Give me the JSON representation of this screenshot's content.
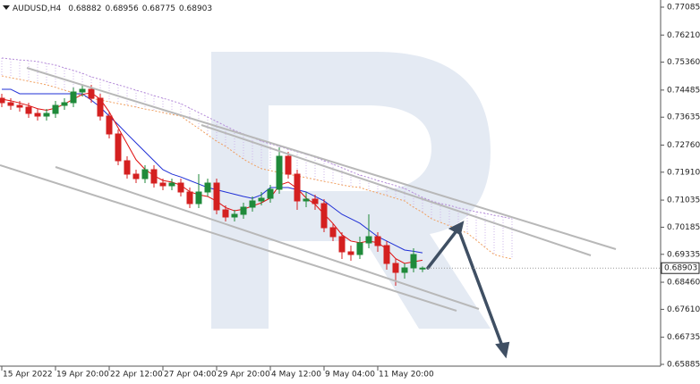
{
  "chart_data": {
    "type": "candlestick",
    "symbol": "AUDUSD,H4",
    "header_ohlc": [
      0.68882,
      0.68956,
      0.68775,
      0.68903
    ],
    "last_price": 0.68903,
    "up_color": "#1f8a3a",
    "down_color": "#d42020",
    "ylim": [
      0.65829,
      0.77309
    ],
    "yticks": [
      0.77085,
      {
        "value": 0.7621,
        "label": "0.76210"
      },
      {
        "value": 0.7536,
        "label": "0.75360"
      },
      0.74485,
      0.73635,
      {
        "value": 0.7276,
        "label": "0.72760"
      },
      {
        "value": 0.7191,
        "label": "0.71910"
      },
      0.71035,
      0.70185,
      0.69335,
      {
        "value": 0.6846,
        "label": "0.68460"
      },
      {
        "value": 0.6761,
        "label": "0.67610"
      },
      0.66735,
      0.65885
    ],
    "categories": [
      "15 Apr 2022",
      null,
      null,
      null,
      null,
      null,
      "19 Apr 20:00",
      null,
      null,
      null,
      null,
      null,
      "22 Apr 12:00",
      null,
      null,
      null,
      null,
      null,
      "27 Apr 04:00",
      null,
      null,
      null,
      null,
      null,
      "29 Apr 20:00",
      null,
      null,
      null,
      null,
      null,
      "4 May 12:00",
      null,
      null,
      null,
      null,
      null,
      "9 May 04:00",
      null,
      null,
      null,
      null,
      null,
      "11 May 20:00",
      null,
      null,
      null,
      null,
      null,
      null,
      null,
      null,
      null,
      null,
      null,
      null,
      null,
      null,
      null
    ],
    "ohlc": [
      [
        0.74229,
        0.74369,
        0.73949,
        0.74089
      ],
      [
        0.74089,
        0.74229,
        0.73865,
        0.74005
      ],
      [
        0.74005,
        0.74145,
        0.73809,
        0.73949
      ],
      [
        0.73949,
        0.74089,
        0.73613,
        0.73753
      ],
      [
        0.73753,
        0.73893,
        0.73529,
        0.73669
      ],
      [
        0.73669,
        0.73893,
        0.73529,
        0.73753
      ],
      [
        0.73753,
        0.74145,
        0.73613,
        0.74005
      ],
      [
        0.74005,
        0.74229,
        0.73865,
        0.74089
      ],
      [
        0.74089,
        0.74565,
        0.73949,
        0.74425
      ],
      [
        0.74425,
        0.74649,
        0.74285,
        0.74509
      ],
      [
        0.74509,
        0.74649,
        0.74089,
        0.74229
      ],
      [
        0.74229,
        0.74369,
        0.73529,
        0.73669
      ],
      [
        0.73669,
        0.73809,
        0.72969,
        0.73109
      ],
      [
        0.73109,
        0.73249,
        0.72129,
        0.72269
      ],
      [
        0.72269,
        0.72409,
        0.71709,
        0.71849
      ],
      [
        0.71849,
        0.71989,
        0.71569,
        0.71709
      ],
      [
        0.71709,
        0.72129,
        0.71569,
        0.71989
      ],
      [
        0.71989,
        0.72129,
        0.71429,
        0.71569
      ],
      [
        0.71569,
        0.71709,
        0.71345,
        0.71485
      ],
      [
        0.71485,
        0.71709,
        0.71345,
        0.71569
      ],
      [
        0.71569,
        0.71709,
        0.71149,
        0.71289
      ],
      [
        0.71289,
        0.71429,
        0.70785,
        0.70925
      ],
      [
        0.70925,
        0.71849,
        0.70785,
        0.71289
      ],
      [
        0.71289,
        0.71709,
        0.71149,
        0.71569
      ],
      [
        0.71569,
        0.71709,
        0.70589,
        0.70729
      ],
      [
        0.70729,
        0.70869,
        0.70365,
        0.70505
      ],
      [
        0.70505,
        0.70729,
        0.70365,
        0.70589
      ],
      [
        0.70589,
        0.70953,
        0.70449,
        0.70813
      ],
      [
        0.70813,
        0.71149,
        0.70673,
        0.71009
      ],
      [
        0.71009,
        0.71289,
        0.70869,
        0.71093
      ],
      [
        0.71093,
        0.71513,
        0.70953,
        0.71373
      ],
      [
        0.71373,
        0.72689,
        0.71233,
        0.72409
      ],
      [
        0.72409,
        0.72549,
        0.71709,
        0.71849
      ],
      [
        0.71849,
        0.71989,
        0.70729,
        0.71009
      ],
      [
        0.71009,
        0.71289,
        0.70813,
        0.71065
      ],
      [
        0.71065,
        0.71205,
        0.70729,
        0.70925
      ],
      [
        0.70925,
        0.71065,
        0.70029,
        0.70169
      ],
      [
        0.70169,
        0.70309,
        0.69749,
        0.69889
      ],
      [
        0.69889,
        0.70029,
        0.69189,
        0.69413
      ],
      [
        0.69413,
        0.69609,
        0.69133,
        0.69329
      ],
      [
        0.69329,
        0.69889,
        0.69189,
        0.69693
      ],
      [
        0.69693,
        0.70589,
        0.69525,
        0.69889
      ],
      [
        0.69889,
        0.70029,
        0.69413,
        0.69609
      ],
      [
        0.69609,
        0.69749,
        0.68853,
        0.69049
      ],
      [
        0.69049,
        0.69189,
        0.68349,
        0.68769
      ],
      [
        0.68769,
        0.69049,
        0.68573,
        0.68909
      ],
      [
        0.68909,
        0.69525,
        0.68769,
        0.69329
      ],
      [
        0.68882,
        0.68956,
        0.68775,
        0.68903
      ],
      null,
      null,
      null,
      null,
      null,
      null,
      null,
      null,
      null,
      null
    ],
    "series": [
      {
        "color": "#1f2fd6",
        "values": [
          0.7451,
          0.7451,
          0.7437,
          0.7437,
          0.7437,
          0.7437,
          0.7437,
          0.7437,
          0.7437,
          0.7437,
          0.7417,
          0.7395,
          0.7367,
          0.734,
          0.7311,
          0.7283,
          0.7255,
          0.7227,
          0.7199,
          0.7185,
          0.7176,
          0.7165,
          0.7154,
          0.7143,
          0.7136,
          0.7129,
          0.7122,
          0.7115,
          0.7109,
          0.712,
          0.7143,
          0.7143,
          0.7143,
          0.7136,
          0.7129,
          0.7115,
          0.7101,
          0.708,
          0.7059,
          0.7045,
          0.7031,
          0.701,
          0.6989,
          0.6975,
          0.6961,
          0.6947,
          0.6943,
          0.6938,
          null,
          null,
          null,
          null,
          null,
          null,
          null,
          null,
          null,
          null
        ]
      },
      {
        "color": "#e01010",
        "values": [
          0.742,
          0.7415,
          0.7408,
          0.74,
          0.739,
          0.7385,
          0.7392,
          0.7405,
          0.742,
          0.7435,
          0.744,
          0.742,
          0.738,
          0.733,
          0.728,
          0.723,
          0.72,
          0.718,
          0.7165,
          0.716,
          0.715,
          0.713,
          0.712,
          0.7115,
          0.71,
          0.708,
          0.707,
          0.7075,
          0.7085,
          0.7095,
          0.711,
          0.715,
          0.716,
          0.714,
          0.711,
          0.709,
          0.706,
          0.703,
          0.6995,
          0.6975,
          0.697,
          0.6975,
          0.697,
          0.695,
          0.692,
          0.6905,
          0.691,
          0.6915,
          null,
          null,
          null,
          null,
          null,
          null,
          null,
          null,
          null,
          null
        ]
      }
    ],
    "cloud": {
      "upper_color": "#b48ad8",
      "lower_color": "#f0a060",
      "fill_color": "#cdb5ea",
      "upper": [
        0.7549,
        0.7546,
        0.7543,
        0.7541,
        0.7538,
        0.7532,
        0.7527,
        0.7518,
        0.751,
        0.7501,
        0.749,
        0.7482,
        0.7473,
        0.7465,
        0.7457,
        0.7448,
        0.744,
        0.7431,
        0.7423,
        0.7415,
        0.7406,
        0.7392,
        0.7378,
        0.7364,
        0.735,
        0.7336,
        0.7322,
        0.7311,
        0.73,
        0.7288,
        0.728,
        0.7272,
        0.7263,
        0.7255,
        0.7247,
        0.7238,
        0.7227,
        0.7216,
        0.7205,
        0.7193,
        0.7182,
        0.7174,
        0.7165,
        0.7157,
        0.7149,
        0.714,
        0.7126,
        0.7112,
        0.7101,
        0.7093,
        0.7087,
        0.7079,
        0.7073,
        0.7067,
        0.7062,
        0.7056,
        0.7051,
        0.7045
      ],
      "lower": [
        0.7493,
        0.7487,
        0.7482,
        0.7476,
        0.7471,
        0.7465,
        0.7457,
        0.7448,
        0.744,
        0.7431,
        0.7423,
        0.7417,
        0.7412,
        0.7406,
        0.7401,
        0.7395,
        0.7389,
        0.7384,
        0.7378,
        0.7372,
        0.7367,
        0.7347,
        0.7328,
        0.7308,
        0.7288,
        0.7272,
        0.7252,
        0.7232,
        0.7216,
        0.7202,
        0.7196,
        0.719,
        0.7185,
        0.7179,
        0.7174,
        0.7168,
        0.7162,
        0.7157,
        0.7151,
        0.7146,
        0.7143,
        0.7134,
        0.7126,
        0.7118,
        0.7109,
        0.7101,
        0.7081,
        0.7065,
        0.7045,
        0.7034,
        0.7023,
        0.7011,
        0.7,
        0.6978,
        0.6955,
        0.6933,
        0.6925,
        0.6919
      ]
    }
  }
}
